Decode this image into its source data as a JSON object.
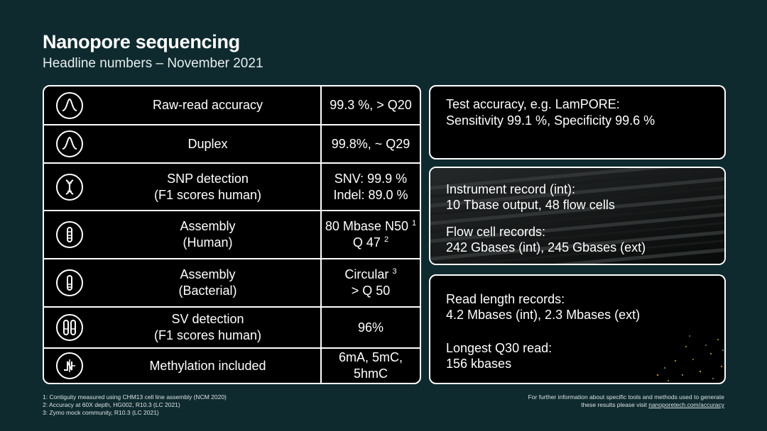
{
  "header": {
    "title": "Nanopore sequencing",
    "subtitle": "Headline numbers – November 2021"
  },
  "table": {
    "rows": [
      {
        "icon": "peak-icon",
        "name_lines": [
          "Raw-read accuracy"
        ],
        "value_lines": [
          "99.3 %, > Q20"
        ]
      },
      {
        "icon": "peak-icon",
        "name_lines": [
          "Duplex"
        ],
        "value_lines": [
          "99.8%, ~ Q29"
        ]
      },
      {
        "icon": "dna-icon",
        "name_lines": [
          "SNP detection",
          "(F1 scores human)"
        ],
        "value_lines": [
          "SNV: 99.9 %",
          "Indel: 89.0 %"
        ]
      },
      {
        "icon": "chromosome-icon",
        "name_lines": [
          "Assembly",
          "(Human)"
        ],
        "value_lines": [
          "80 Mbase N50",
          "Q 47"
        ],
        "value_sups": [
          "1",
          "2"
        ]
      },
      {
        "icon": "chromosome-icon",
        "name_lines": [
          "Assembly",
          "(Bacterial)"
        ],
        "value_lines": [
          "Circular",
          "> Q 50"
        ],
        "value_sups": [
          "3",
          ""
        ]
      },
      {
        "icon": "chromosome-pair-icon",
        "name_lines": [
          "SV detection",
          "(F1 scores human)"
        ],
        "value_lines": [
          "96%"
        ]
      },
      {
        "icon": "methylation-icon",
        "name_lines": [
          "Methylation included"
        ],
        "value_lines": [
          "6mA, 5mC, 5hmC"
        ]
      }
    ]
  },
  "boxes": {
    "accuracy": {
      "line1": "Test accuracy, e.g. LamPORE:",
      "line2": "Sensitivity 99.1 %, Specificity 99.6 %"
    },
    "instrument": {
      "line1": "Instrument record (int):",
      "line2": "10 Tbase output, 48 flow cells",
      "line3": "Flow cell records:",
      "line4": "242 Gbases (int), 245 Gbases (ext)"
    },
    "readlength": {
      "line1": "Read length records:",
      "line2": "4.2 Mbases (int), 2.3 Mbases (ext)",
      "line3": "Longest Q30 read:",
      "line4": "156 kbases"
    }
  },
  "footnotes": {
    "left": [
      "1: Contiguity measured using CHM13 cell line assembly (NCM 2020)",
      "2: Accuracy at 60X depth, HG002, R10.3 (LC 2021)",
      "3: Zymo mock community, R10.3 (LC 2021)"
    ],
    "right_line1": "For further information about specific tools and methods used to generate",
    "right_line2_prefix": "these results please visit ",
    "right_link": "nanoporetech.com/accuracy"
  },
  "colors": {
    "background": "#0f2a2e",
    "panel": "#000000",
    "border": "#ffffff"
  }
}
